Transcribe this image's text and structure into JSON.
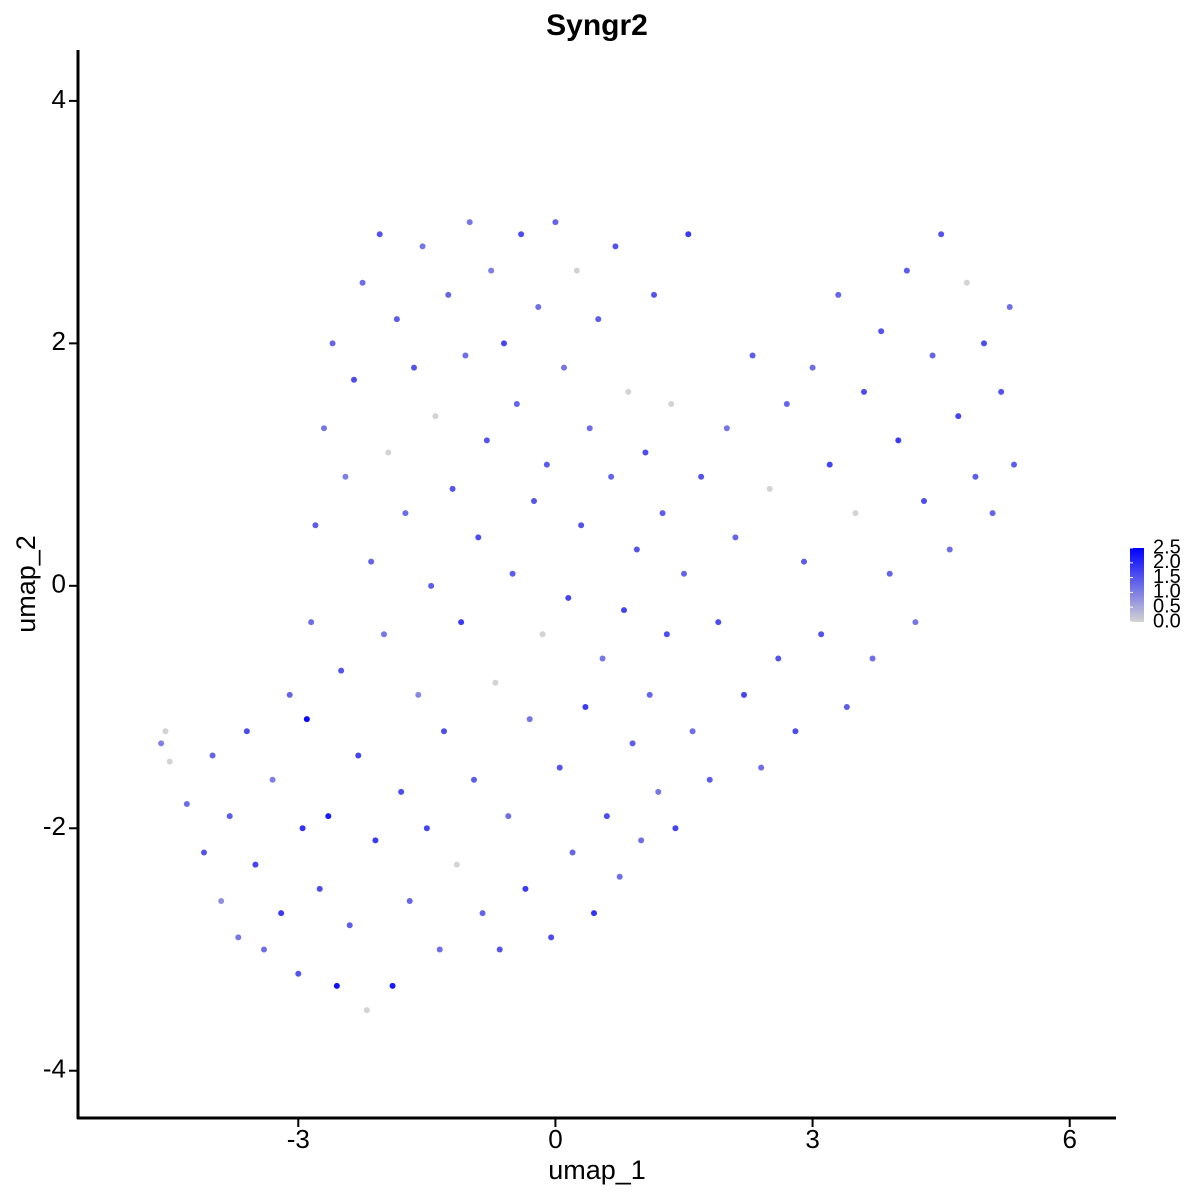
{
  "chart_data": {
    "type": "scatter",
    "title": "Syngr2",
    "x_label": "umap_1",
    "y_label": "umap_2",
    "xlim": [
      -5.57,
      6.54
    ],
    "xticks": [
      -3,
      0,
      3,
      6
    ],
    "ylim": [
      -4.39,
      4.42
    ],
    "yticks": [
      -4,
      -2,
      0,
      2,
      4
    ],
    "color_low": "#d3d3d3",
    "color_high": "#0000ff",
    "colorbar": {
      "lim": [
        0,
        2.5
      ],
      "ticks": [
        {
          "value": 0,
          "label": "0.0"
        },
        0.5,
        {
          "value": 1,
          "label": "1.0"
        },
        1.5,
        {
          "value": 2,
          "label": "2.0"
        },
        2.5
      ]
    },
    "x": [
      -4.6,
      -4.55,
      -4.5,
      -4.3,
      -4.1,
      -4.0,
      -3.9,
      -3.8,
      -3.7,
      -3.6,
      -3.5,
      -3.4,
      -3.3,
      -3.2,
      -3.1,
      -3.0,
      -2.95,
      -2.9,
      -2.85,
      -2.8,
      -2.75,
      -2.7,
      -2.65,
      -2.6,
      -2.55,
      -2.5,
      -2.45,
      -2.4,
      -2.35,
      -2.3,
      -2.25,
      -2.2,
      -2.15,
      -2.1,
      -2.05,
      -2.0,
      -1.95,
      -1.9,
      -1.85,
      -1.8,
      -1.75,
      -1.7,
      -1.65,
      -1.6,
      -1.55,
      -1.5,
      -1.45,
      -1.4,
      -1.35,
      -1.3,
      -1.25,
      -1.2,
      -1.15,
      -1.1,
      -1.05,
      -1.0,
      -0.95,
      -0.9,
      -0.85,
      -0.8,
      -0.75,
      -0.7,
      -0.65,
      -0.6,
      -0.55,
      -0.5,
      -0.45,
      -0.4,
      -0.35,
      -0.3,
      -0.25,
      -0.2,
      -0.15,
      -0.1,
      -0.05,
      0.0,
      0.05,
      0.1,
      0.15,
      0.2,
      0.25,
      0.3,
      0.35,
      0.4,
      0.45,
      0.5,
      0.55,
      0.6,
      0.65,
      0.7,
      0.75,
      0.8,
      0.85,
      0.9,
      0.95,
      1.0,
      1.05,
      1.1,
      1.15,
      1.2,
      1.25,
      1.3,
      1.35,
      1.4,
      1.5,
      1.55,
      1.6,
      1.7,
      1.8,
      1.9,
      2.0,
      2.1,
      2.2,
      2.3,
      2.4,
      2.5,
      2.6,
      2.7,
      2.8,
      2.9,
      3.0,
      3.1,
      3.2,
      3.3,
      3.4,
      3.5,
      3.6,
      3.7,
      3.8,
      3.9,
      4.0,
      4.1,
      4.2,
      4.3,
      4.4,
      4.5,
      4.6,
      4.7,
      4.8,
      4.9,
      5.0,
      5.1,
      5.2,
      5.3,
      5.35
    ],
    "y": [
      -1.3,
      -1.2,
      -1.45,
      -1.8,
      -2.2,
      -1.4,
      -2.6,
      -1.9,
      -2.9,
      -1.2,
      -2.3,
      -3.0,
      -1.6,
      -2.7,
      -0.9,
      -3.2,
      -2.0,
      -1.1,
      -0.3,
      0.5,
      -2.5,
      1.3,
      -1.9,
      2.0,
      -3.3,
      -0.7,
      0.9,
      -2.8,
      1.7,
      -1.4,
      2.5,
      -3.5,
      0.2,
      -2.1,
      2.9,
      -0.4,
      1.1,
      -3.3,
      2.2,
      -1.7,
      0.6,
      -2.6,
      1.8,
      -0.9,
      2.8,
      -2.0,
      0.0,
      1.4,
      -3.0,
      -1.2,
      2.4,
      0.8,
      -2.3,
      -0.3,
      1.9,
      3.0,
      -1.6,
      0.4,
      -2.7,
      1.2,
      2.6,
      -0.8,
      -3.0,
      2.0,
      -1.9,
      0.1,
      1.5,
      2.9,
      -2.5,
      -1.1,
      0.7,
      2.3,
      -0.4,
      1.0,
      -2.9,
      3.0,
      -1.5,
      1.8,
      -0.1,
      -2.2,
      2.6,
      0.5,
      -1.0,
      1.3,
      -2.7,
      2.2,
      -0.6,
      -1.9,
      0.9,
      2.8,
      -2.4,
      -0.2,
      1.6,
      -1.3,
      0.3,
      -2.1,
      1.1,
      -0.9,
      2.4,
      -1.7,
      0.6,
      -0.4,
      1.5,
      -2.0,
      0.1,
      2.9,
      -1.2,
      0.9,
      -1.6,
      -0.3,
      1.3,
      0.4,
      -0.9,
      1.9,
      -1.5,
      0.8,
      -0.6,
      1.5,
      -1.2,
      0.2,
      1.8,
      -0.4,
      1.0,
      2.4,
      -1.0,
      0.6,
      1.6,
      -0.6,
      2.1,
      0.1,
      1.2,
      2.6,
      -0.3,
      0.7,
      1.9,
      2.9,
      0.3,
      1.4,
      2.5,
      0.9,
      2.0,
      0.6,
      1.6,
      2.3,
      1.0
    ],
    "values": [
      1.0,
      0,
      0,
      1.2,
      1.5,
      1.3,
      0.8,
      1.4,
      1.1,
      1.6,
      1.7,
      1.2,
      1.0,
      1.8,
      1.3,
      1.5,
      1.9,
      2.4,
      1.2,
      1.4,
      1.6,
      1.1,
      2.2,
      1.3,
      2.3,
      1.5,
      1.0,
      1.4,
      1.6,
      1.7,
      1.2,
      0,
      1.3,
      1.8,
      1.5,
      1.1,
      0,
      2.2,
      1.4,
      1.6,
      1.2,
      1.3,
      1.5,
      0.9,
      1.1,
      1.7,
      1.4,
      0,
      1.2,
      1.6,
      1.3,
      1.5,
      0,
      1.8,
      1.2,
      1.1,
      1.4,
      1.6,
      1.3,
      1.5,
      1.0,
      0,
      1.5,
      1.7,
      1.2,
      1.4,
      1.3,
      1.6,
      1.8,
      1.1,
      1.5,
      1.2,
      0,
      1.4,
      1.6,
      1.3,
      1.5,
      1.1,
      1.7,
      1.3,
      0,
      1.5,
      1.8,
      1.2,
      1.9,
      1.4,
      1.1,
      1.6,
      1.3,
      1.5,
      1.2,
      1.7,
      0,
      1.4,
      1.5,
      1.2,
      1.6,
      1.3,
      1.5,
      1.1,
      1.4,
      1.6,
      0,
      1.7,
      1.3,
      1.8,
      1.2,
      1.5,
      1.4,
      1.6,
      1.1,
      1.3,
      1.7,
      1.4,
      1.2,
      0,
      1.5,
      1.3,
      1.6,
      1.4,
      1.2,
      1.5,
      1.7,
      1.3,
      1.4,
      0,
      1.6,
      1.2,
      1.5,
      1.3,
      1.8,
      1.4,
      1.1,
      1.6,
      1.3,
      1.5,
      1.2,
      1.7,
      0,
      1.4,
      1.6,
      1.3,
      1.5,
      1.2,
      1.4
    ]
  }
}
